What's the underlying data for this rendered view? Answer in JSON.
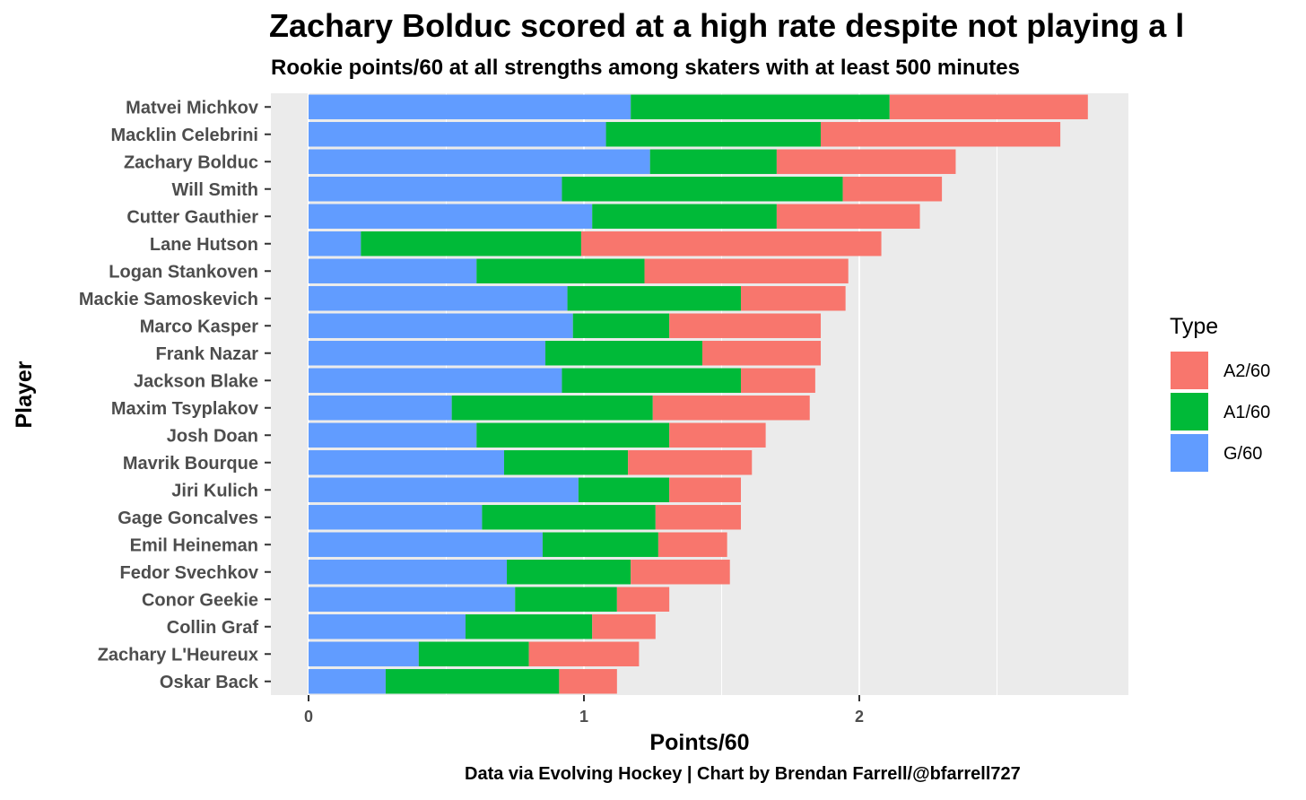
{
  "title": "Zachary Bolduc scored at a high rate despite not playing a l",
  "subtitle": "Rookie points/60 at all strengths among skaters with at least 500 minutes",
  "caption": "Data via Evolving Hockey | Chart by Brendan Farrell/@bfarrell727",
  "chart_data": {
    "type": "bar",
    "orientation": "horizontal",
    "stacked": true,
    "xlabel": "Points/60",
    "ylabel": "Player",
    "xlim": [
      0,
      2.97
    ],
    "xticks": [
      "0",
      "1",
      "2"
    ],
    "xtick_values": [
      0,
      1,
      2
    ],
    "grid": true,
    "legend": {
      "title": "Type",
      "position": "right",
      "entries": [
        "A2/60",
        "A1/60",
        "G/60"
      ]
    },
    "colors": {
      "G/60": "#619CFF",
      "A1/60": "#00BA38",
      "A2/60": "#F8766D",
      "panel": "#EBEBEB",
      "grid": "#FFFFFF"
    },
    "categories": [
      "Matvei Michkov",
      "Macklin Celebrini",
      "Zachary Bolduc",
      "Will Smith",
      "Cutter Gauthier",
      "Lane Hutson",
      "Logan Stankoven",
      "Mackie Samoskevich",
      "Marco Kasper",
      "Frank Nazar",
      "Jackson Blake",
      "Maxim Tsyplakov",
      "Josh Doan",
      "Mavrik Bourque",
      "Jiri Kulich",
      "Gage Goncalves",
      "Emil Heineman",
      "Fedor Svechkov",
      "Conor Geekie",
      "Collin Graf",
      "Zachary L'Heureux",
      "Oskar Back"
    ],
    "series": [
      {
        "name": "G/60",
        "values": [
          1.17,
          1.08,
          1.24,
          0.92,
          1.03,
          0.19,
          0.61,
          0.94,
          0.96,
          0.86,
          0.92,
          0.52,
          0.61,
          0.71,
          0.98,
          0.63,
          0.85,
          0.72,
          0.75,
          0.57,
          0.4,
          0.28
        ]
      },
      {
        "name": "A1/60",
        "values": [
          0.94,
          0.78,
          0.46,
          1.02,
          0.67,
          0.8,
          0.61,
          0.63,
          0.35,
          0.57,
          0.65,
          0.73,
          0.7,
          0.45,
          0.33,
          0.63,
          0.42,
          0.45,
          0.37,
          0.46,
          0.4,
          0.63
        ]
      },
      {
        "name": "A2/60",
        "values": [
          0.72,
          0.87,
          0.65,
          0.36,
          0.52,
          1.09,
          0.74,
          0.38,
          0.55,
          0.43,
          0.27,
          0.57,
          0.35,
          0.45,
          0.26,
          0.31,
          0.25,
          0.36,
          0.19,
          0.23,
          0.4,
          0.21
        ]
      }
    ]
  }
}
